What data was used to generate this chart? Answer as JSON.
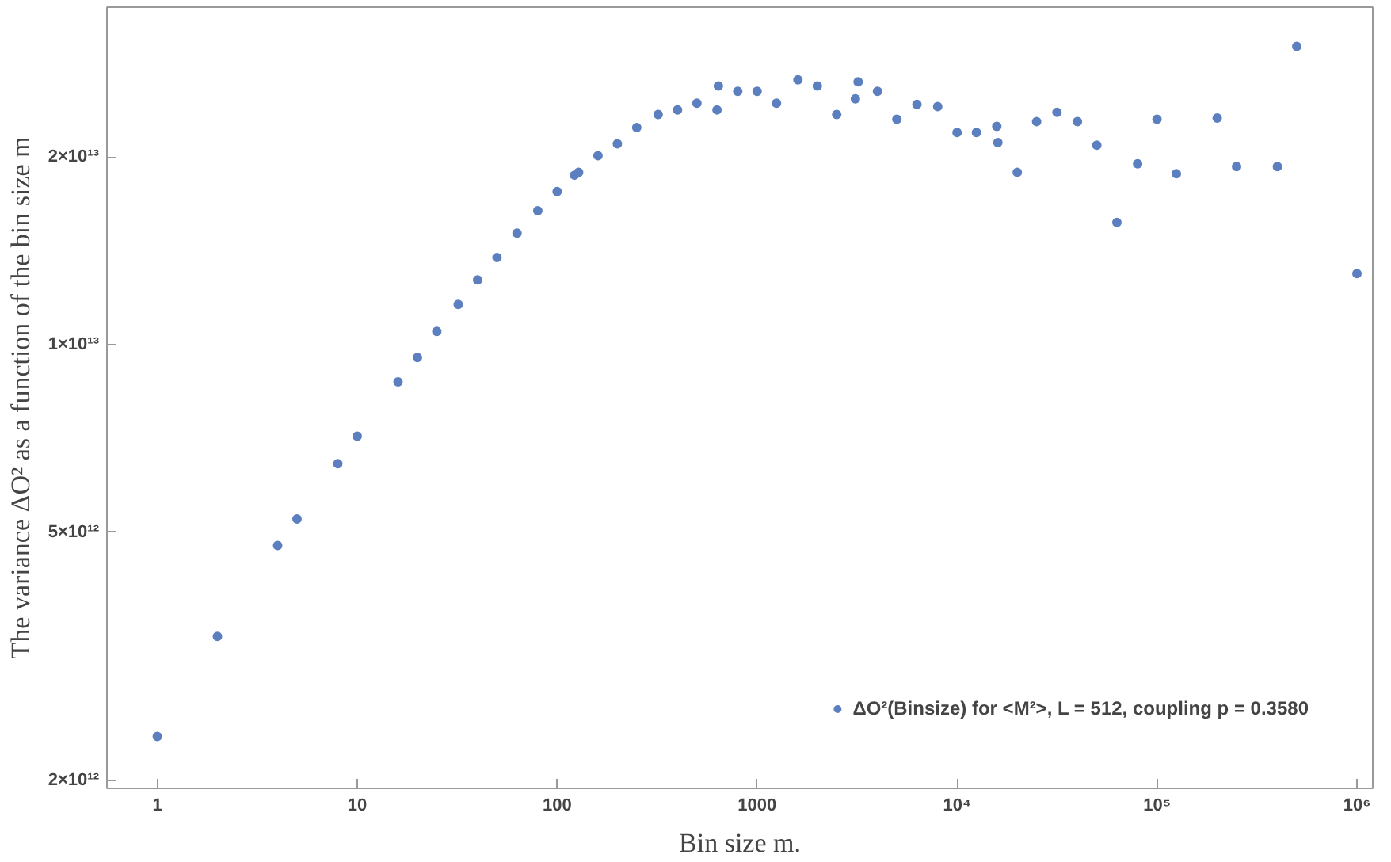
{
  "chart_data": {
    "type": "scatter",
    "xlabel": "Bin size m.",
    "ylabel": "The variance ΔO² as a function of the bin size m",
    "log": "xy",
    "grid": false,
    "legend": "bottom right",
    "marker": "circle",
    "xlim": [
      0.56,
      1200000
    ],
    "ylim": [
      1940000000000,
      34800000000000
    ],
    "xticks": [
      1,
      10,
      100,
      1000,
      {
        "value": 10000,
        "label": "10⁴"
      },
      {
        "value": 100000,
        "label": "10⁵"
      },
      {
        "value": 1000000,
        "label": "10⁶"
      }
    ],
    "yticks": [
      {
        "value": 2000000000000,
        "label": "2×10¹²"
      },
      {
        "value": 5000000000000,
        "label": "5×10¹²"
      },
      {
        "value": 10000000000000,
        "label": "1×10¹³"
      },
      {
        "value": 20000000000000,
        "label": "2×10¹³"
      }
    ],
    "series": [
      {
        "name": "ΔO²(Binsize) for <M²>, L = 512, coupling p = 0.3580",
        "color": "#5b7fbf",
        "x": [
          1,
          2,
          4,
          5,
          8,
          10,
          16,
          20,
          25,
          32,
          40,
          50,
          63,
          80,
          100,
          122,
          128,
          160,
          200,
          250,
          320,
          400,
          500,
          630,
          640,
          800,
          1000,
          1250,
          1600,
          2000,
          2500,
          3100,
          3200,
          4000,
          5000,
          6300,
          8000,
          10000,
          12500,
          15800,
          16000,
          20000,
          25000,
          31600,
          40000,
          50000,
          63000,
          80000,
          100000,
          125000,
          200000,
          250000,
          400000,
          500000,
          1000000
        ],
        "values": [
          2350000000000.0,
          3400000000000.0,
          4760000000000.0,
          5250000000000.0,
          6440000000000.0,
          7130000000000.0,
          8710000000000.0,
          9530000000000.0,
          10500000000000.0,
          11600000000000.0,
          12700000000000.0,
          13800000000000.0,
          15100000000000.0,
          16400000000000.0,
          17600000000000.0,
          18700000000000.0,
          18900000000000.0,
          20100000000000.0,
          21000000000000.0,
          22300000000000.0,
          23400000000000.0,
          23800000000000.0,
          24400000000000.0,
          23800000000000.0,
          26000000000000.0,
          25500000000000.0,
          25500000000000.0,
          24400000000000.0,
          26600000000000.0,
          26000000000000.0,
          23400000000000.0,
          24800000000000.0,
          26400000000000.0,
          25500000000000.0,
          23000000000000.0,
          24300000000000.0,
          24100000000000.0,
          21900000000000.0,
          21900000000000.0,
          22400000000000.0,
          21100000000000.0,
          18900000000000.0,
          22800000000000.0,
          23600000000000.0,
          22800000000000.0,
          20900000000000.0,
          15700000000000.0,
          19500000000000.0,
          23000000000000.0,
          18800000000000.0,
          23100000000000.0,
          19300000000000.0,
          19300000000000.0,
          30100000000000.0,
          13000000000000.0
        ]
      }
    ]
  }
}
